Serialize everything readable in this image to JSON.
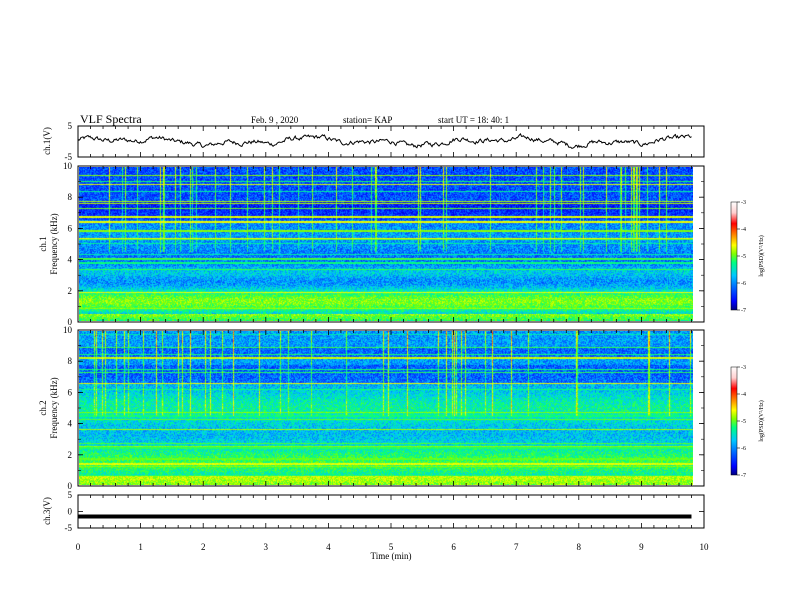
{
  "header": {
    "title": "VLF Spectra",
    "date": "Feb. 9 , 2020",
    "station": "station= KAP",
    "start": "start UT = 18: 40: 1"
  },
  "chart_data": [
    {
      "type": "line",
      "ylabel": "ch.1(V)",
      "ylim": [
        -5,
        5
      ],
      "yticks": [
        "5",
        "-5"
      ],
      "xlim": [
        0,
        10
      ],
      "note": "noisy waveform oscillating roughly between -2 and 3 V"
    },
    {
      "type": "heatmap",
      "ylabel_top": "ch.1",
      "ylabel": "Frequency (kHz)",
      "ylim": [
        0,
        10
      ],
      "yticks": [
        "0",
        "2",
        "4",
        "6",
        "8",
        "10"
      ],
      "xlim": [
        0,
        10
      ],
      "colorbar": {
        "label": "log(PSD)(V²/Hz)",
        "ticks": [
          "-3",
          "-4",
          "-5",
          "-6",
          "-7"
        ],
        "range": [
          -7,
          -3
        ]
      }
    },
    {
      "type": "heatmap",
      "ylabel_top": "ch.2",
      "ylabel": "Frequency (kHz)",
      "ylim": [
        0,
        10
      ],
      "yticks": [
        "0",
        "2",
        "4",
        "6",
        "8",
        "10"
      ],
      "xlim": [
        0,
        10
      ],
      "colorbar": {
        "label": "log(PSD)(V²/Hz)",
        "ticks": [
          "-3",
          "-4",
          "-5",
          "-6",
          "-7"
        ],
        "range": [
          -7,
          -3
        ]
      }
    },
    {
      "type": "line",
      "ylabel": "ch.3(V)",
      "ylim": [
        -5,
        5
      ],
      "yticks": [
        "5",
        "0",
        "-5"
      ],
      "xlim": [
        0,
        10
      ],
      "values_constant": -1.5
    }
  ],
  "xaxis": {
    "label": "Time (min)",
    "ticks": [
      "0",
      "1",
      "2",
      "3",
      "4",
      "5",
      "6",
      "7",
      "8",
      "9",
      "10"
    ]
  },
  "colors": {
    "scale": [
      "#000080",
      "#0000ff",
      "#0060ff",
      "#00c8ff",
      "#00ff80",
      "#80ff00",
      "#ffff00",
      "#ff8000",
      "#ff0000",
      "#ffd0d0",
      "#ffffff"
    ]
  }
}
